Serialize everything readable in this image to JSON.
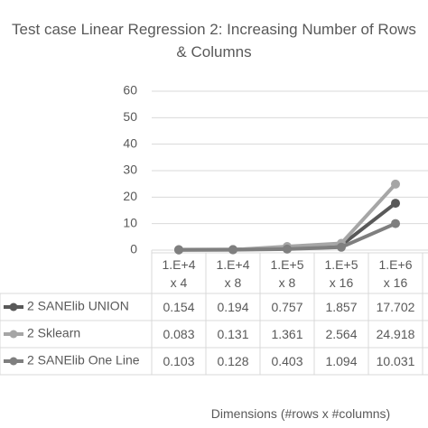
{
  "chart_data": {
    "type": "line",
    "title": "Test case Linear Regression 2: Increasing Number of Rows & Columns",
    "x_label": "Dimensions (#rows x #columns)",
    "categories": [
      "1.E+4 x 4",
      "1.E+4 x 8",
      "1.E+5 x 8",
      "1.E+5 x 16",
      "1.E+6 x 16"
    ],
    "series": [
      {
        "name": "2 SANElib UNION",
        "color": "#595959",
        "values": [
          0.154,
          0.194,
          0.757,
          1.857,
          17.702
        ]
      },
      {
        "name": "2 Sklearn",
        "color": "#a6a6a6",
        "values": [
          0.083,
          0.131,
          1.361,
          2.564,
          24.918
        ]
      },
      {
        "name": "2 SANElib One Line",
        "color": "#7f7f7f",
        "values": [
          0.103,
          0.128,
          0.403,
          1.094,
          10.031
        ]
      }
    ],
    "ylim": [
      0,
      60
    ],
    "yticks": [
      0,
      10,
      20,
      30,
      40,
      50,
      60
    ],
    "grid": true
  }
}
